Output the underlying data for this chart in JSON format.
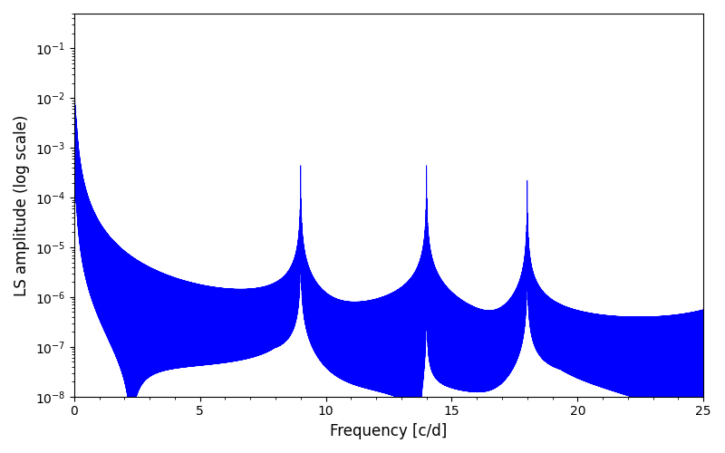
{
  "xlabel": "Frequency [c/d]",
  "ylabel": "LS amplitude (log scale)",
  "xlim": [
    0,
    25
  ],
  "ylim": [
    1e-08,
    0.5
  ],
  "line_color": "#0000ff",
  "line_width": 0.5,
  "figsize": [
    8.0,
    5.0
  ],
  "dpi": 100,
  "freq_min": 0.001,
  "freq_max": 25.0,
  "n_points": 80000
}
